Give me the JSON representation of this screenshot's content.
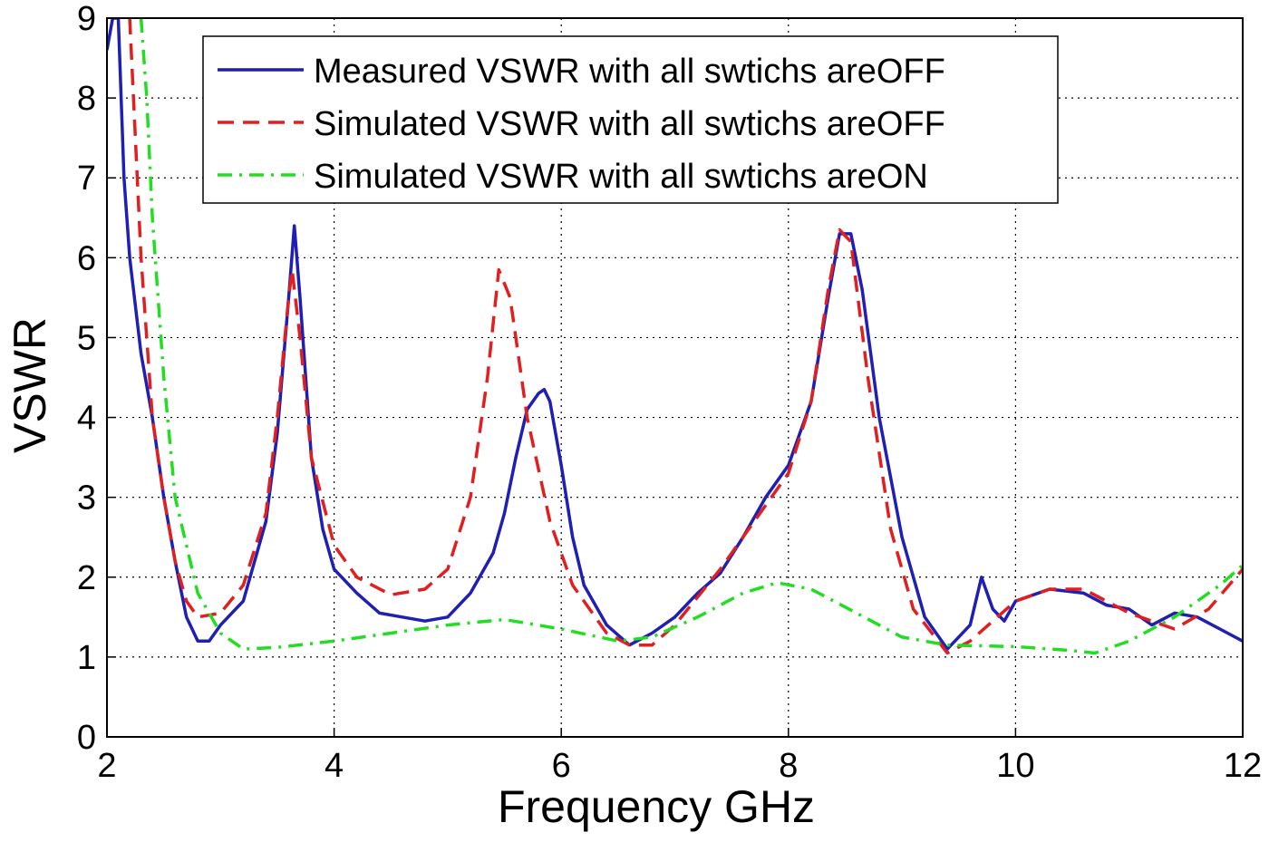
{
  "chart_data": {
    "type": "line",
    "title": "",
    "xlabel": "Frequency GHz",
    "ylabel": "VSWR",
    "xlim": [
      2,
      12
    ],
    "ylim": [
      0,
      9
    ],
    "xticks": [
      2,
      4,
      6,
      8,
      10,
      12
    ],
    "yticks": [
      0,
      1,
      2,
      3,
      4,
      5,
      6,
      7,
      8,
      9
    ],
    "grid": true,
    "legend_position": "top",
    "series": [
      {
        "name": "Measured VSWR with all swtichs areOFF",
        "color": "#1f1fb4",
        "style": "solid",
        "x": [
          2.0,
          2.05,
          2.1,
          2.15,
          2.2,
          2.3,
          2.4,
          2.5,
          2.6,
          2.7,
          2.8,
          2.9,
          3.0,
          3.2,
          3.4,
          3.5,
          3.6,
          3.65,
          3.7,
          3.8,
          3.9,
          4.0,
          4.2,
          4.4,
          4.6,
          4.8,
          5.0,
          5.2,
          5.4,
          5.5,
          5.6,
          5.7,
          5.8,
          5.85,
          5.9,
          6.0,
          6.1,
          6.2,
          6.4,
          6.6,
          6.8,
          7.0,
          7.2,
          7.4,
          7.6,
          7.8,
          8.0,
          8.2,
          8.35,
          8.45,
          8.55,
          8.65,
          8.8,
          9.0,
          9.2,
          9.4,
          9.6,
          9.7,
          9.8,
          9.9,
          10.0,
          10.3,
          10.6,
          10.8,
          11.0,
          11.2,
          11.4,
          11.6,
          11.8,
          12.0
        ],
        "y": [
          8.6,
          9,
          9,
          7,
          6,
          4.8,
          4,
          3,
          2.2,
          1.5,
          1.2,
          1.2,
          1.4,
          1.7,
          2.7,
          3.8,
          5.5,
          6.4,
          5.5,
          3.5,
          2.6,
          2.1,
          1.8,
          1.55,
          1.5,
          1.45,
          1.5,
          1.8,
          2.3,
          2.8,
          3.5,
          4.1,
          4.3,
          4.35,
          4.2,
          3.4,
          2.5,
          1.9,
          1.4,
          1.15,
          1.3,
          1.5,
          1.8,
          2.05,
          2.5,
          3.0,
          3.4,
          4.2,
          5.5,
          6.3,
          6.3,
          5.6,
          4.0,
          2.5,
          1.5,
          1.1,
          1.4,
          2.0,
          1.6,
          1.45,
          1.7,
          1.85,
          1.8,
          1.65,
          1.6,
          1.4,
          1.55,
          1.5,
          1.35,
          1.2
        ]
      },
      {
        "name": "Simulated VSWR with all swtichs areOFF",
        "color": "#e02020",
        "style": "dashed",
        "x": [
          2.2,
          2.3,
          2.4,
          2.5,
          2.6,
          2.7,
          2.8,
          3.0,
          3.2,
          3.4,
          3.5,
          3.6,
          3.63,
          3.7,
          3.8,
          4.0,
          4.2,
          4.5,
          4.8,
          5.0,
          5.2,
          5.35,
          5.45,
          5.55,
          5.7,
          5.9,
          6.1,
          6.4,
          6.6,
          6.8,
          7.0,
          7.4,
          7.8,
          8.0,
          8.2,
          8.35,
          8.45,
          8.55,
          8.7,
          8.9,
          9.1,
          9.4,
          9.6,
          9.8,
          10.0,
          10.3,
          10.6,
          10.8,
          11.0,
          11.4,
          11.7,
          12.0
        ],
        "y": [
          9,
          6,
          4,
          3,
          2.2,
          1.7,
          1.5,
          1.55,
          1.9,
          2.8,
          4,
          5.5,
          5.85,
          5,
          3.5,
          2.4,
          2.0,
          1.78,
          1.85,
          2.1,
          3.0,
          4.5,
          5.85,
          5.5,
          4.0,
          2.7,
          1.9,
          1.3,
          1.15,
          1.15,
          1.4,
          2.1,
          2.9,
          3.3,
          4.2,
          5.6,
          6.35,
          6.2,
          4.5,
          2.6,
          1.6,
          1.05,
          1.2,
          1.45,
          1.7,
          1.85,
          1.85,
          1.7,
          1.55,
          1.35,
          1.6,
          2.1
        ]
      },
      {
        "name": "Simulated VSWR with all swtichs areON",
        "color": "#22dd22",
        "style": "dashdot",
        "x": [
          2.3,
          2.35,
          2.4,
          2.5,
          2.6,
          2.8,
          3.0,
          3.2,
          3.5,
          4.0,
          4.5,
          5.0,
          5.5,
          6.0,
          6.5,
          6.8,
          7.2,
          7.6,
          7.9,
          8.2,
          8.6,
          9.0,
          9.4,
          10.0,
          10.5,
          10.7,
          11.0,
          11.4,
          11.8,
          12.0
        ],
        "y": [
          9,
          8,
          6.5,
          4.5,
          3,
          1.8,
          1.3,
          1.1,
          1.12,
          1.2,
          1.3,
          1.4,
          1.47,
          1.35,
          1.2,
          1.25,
          1.5,
          1.8,
          1.93,
          1.85,
          1.55,
          1.25,
          1.15,
          1.13,
          1.08,
          1.05,
          1.2,
          1.5,
          1.9,
          2.15
        ]
      }
    ]
  }
}
